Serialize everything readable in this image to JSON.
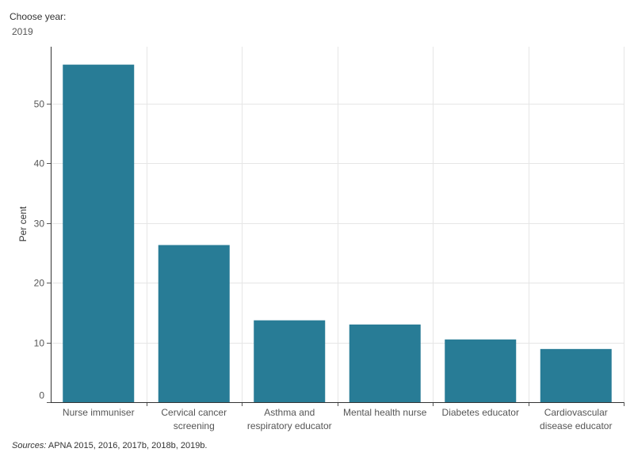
{
  "filter": {
    "label": "Choose year:",
    "value": "2019"
  },
  "chart_data": {
    "type": "bar",
    "categories": [
      [
        "Nurse immuniser"
      ],
      [
        "Cervical cancer",
        "screening"
      ],
      [
        "Asthma and",
        "respiratory educator"
      ],
      [
        "Mental health nurse"
      ],
      [
        "Diabetes educator"
      ],
      [
        "Cardiovascular",
        "disease educator"
      ]
    ],
    "values": [
      56.5,
      26.3,
      13.7,
      13.0,
      10.5,
      8.9
    ],
    "ylabel": "Per cent",
    "ylim": [
      0,
      59.5
    ],
    "yticks": [
      0,
      10,
      20,
      30,
      40,
      50
    ],
    "grid": true,
    "bar_color": "#287c96",
    "grid_color": "#e6e6e6"
  },
  "sources": {
    "prefix": "Sources:",
    "text": " APNA 2015, 2016, 2017b, 2018b, 2019b."
  }
}
